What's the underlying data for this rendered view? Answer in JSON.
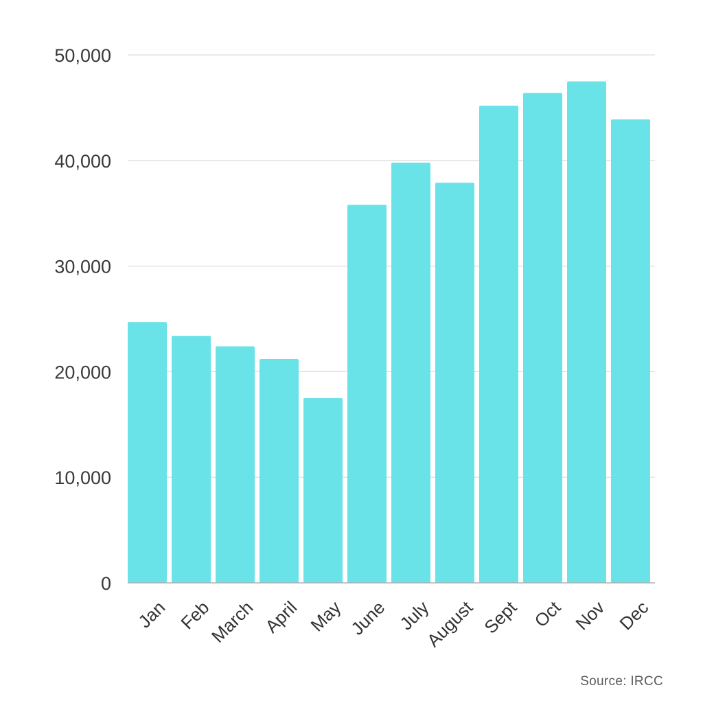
{
  "chart_data": {
    "type": "bar",
    "categories": [
      "Jan",
      "Feb",
      "March",
      "April",
      "May",
      "June",
      "July",
      "August",
      "Sept",
      "Oct",
      "Nov",
      "Dec"
    ],
    "values": [
      24700,
      23400,
      22400,
      21200,
      17500,
      35800,
      39800,
      37900,
      45200,
      46400,
      47500,
      43900
    ],
    "title": "",
    "xlabel": "",
    "ylabel": "",
    "ylim": [
      0,
      50000
    ],
    "yticks": [
      0,
      10000,
      20000,
      30000,
      40000,
      50000
    ],
    "ytick_labels": [
      "0",
      "10,000",
      "20,000",
      "30,000",
      "40,000",
      "50,000"
    ],
    "grid": true,
    "bar_color": "#6ae3e8",
    "gridline_color": "#dcdcdc",
    "baseline_color": "#b0b0b0",
    "source": "Source: IRCC"
  }
}
